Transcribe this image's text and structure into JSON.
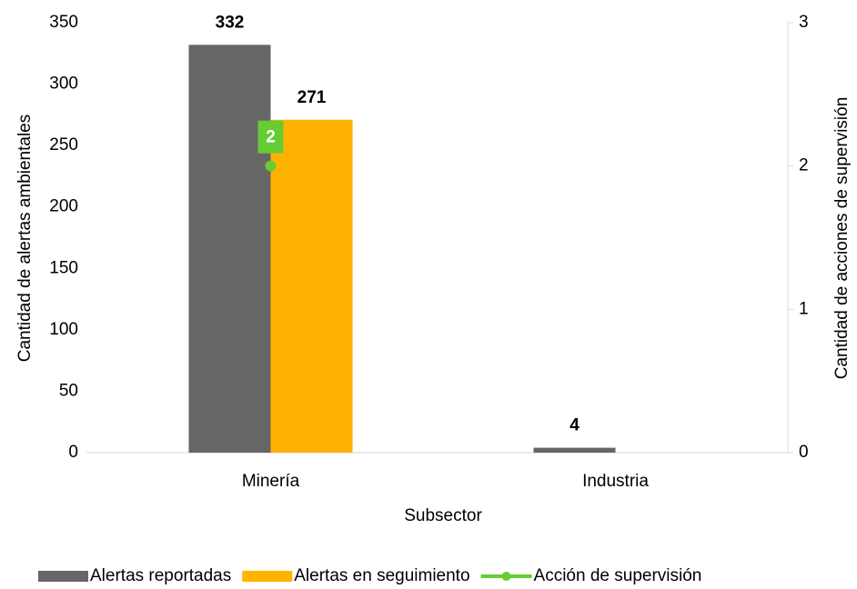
{
  "chart_data": {
    "type": "bar",
    "categories": [
      "Minería",
      "Industria"
    ],
    "xlabel": "Subsector",
    "ylabel": "Cantidad  de  alertas ambientales",
    "y2label": "Cantidad  de acciones de supervisión",
    "series": [
      {
        "name": "Alertas reportadas",
        "color": "#666666",
        "values": [
          332,
          4
        ]
      },
      {
        "name": "Alertas en seguimiento",
        "color": "#ffb300",
        "values": [
          271,
          null
        ]
      },
      {
        "name": "Acción de supervisión",
        "color": "#66cc33",
        "type": "line",
        "axis": "y2",
        "values": [
          2,
          null
        ]
      }
    ],
    "ylim": [
      0,
      350
    ],
    "yticks": [
      0,
      50,
      100,
      150,
      200,
      250,
      300,
      350
    ],
    "y2lim": [
      0,
      3
    ],
    "y2ticks": [
      0,
      1,
      2,
      3
    ],
    "legend": "bottom"
  }
}
